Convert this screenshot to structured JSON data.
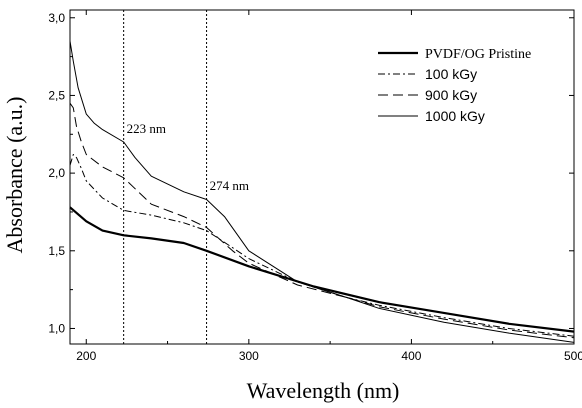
{
  "chart_data": {
    "type": "line",
    "xlabel": "Wavelength (nm)",
    "ylabel": "Absorbance (a.u.)",
    "xlim": [
      190,
      500
    ],
    "ylim": [
      0.9,
      3.05
    ],
    "x_ticks": [
      200,
      300,
      400,
      500
    ],
    "y_ticks": [
      1.0,
      1.5,
      2.0,
      2.5,
      3.0
    ],
    "x_tick_labels": [
      "200",
      "300",
      "400",
      "500"
    ],
    "y_tick_labels": [
      "1,0",
      "1,5",
      "2,0",
      "2,5",
      "3,0"
    ],
    "grid": false,
    "legend_position": "top-right",
    "reference_lines": [
      {
        "x": 223,
        "label": "223 nm"
      },
      {
        "x": 274,
        "label": "274 nm"
      }
    ],
    "series": [
      {
        "name": "PVDF/OG Pristine",
        "style": "solid-thick",
        "x": [
          190,
          200,
          210,
          223,
          240,
          260,
          274,
          300,
          340,
          380,
          420,
          460,
          500
        ],
        "y": [
          1.78,
          1.69,
          1.63,
          1.6,
          1.58,
          1.55,
          1.5,
          1.4,
          1.27,
          1.17,
          1.1,
          1.03,
          0.98
        ]
      },
      {
        "name": "100 kGy",
        "style": "dash-dot",
        "x": [
          190,
          192,
          194,
          197,
          200,
          210,
          223,
          240,
          260,
          274,
          290,
          300,
          330,
          360,
          380,
          420,
          460,
          500
        ],
        "y": [
          2.05,
          2.12,
          2.1,
          2.03,
          1.95,
          1.84,
          1.76,
          1.73,
          1.68,
          1.63,
          1.52,
          1.45,
          1.3,
          1.2,
          1.15,
          1.07,
          1.0,
          0.95
        ]
      },
      {
        "name": "900 kGy",
        "style": "long-dash",
        "x": [
          190,
          192,
          194,
          197,
          200,
          210,
          223,
          240,
          260,
          274,
          290,
          300,
          330,
          360,
          380,
          420,
          460,
          500
        ],
        "y": [
          2.45,
          2.42,
          2.3,
          2.2,
          2.12,
          2.04,
          1.97,
          1.8,
          1.72,
          1.65,
          1.5,
          1.42,
          1.28,
          1.2,
          1.14,
          1.06,
          0.99,
          0.94
        ]
      },
      {
        "name": "1000 kGy",
        "style": "solid-thin",
        "x": [
          190,
          192,
          195,
          200,
          205,
          210,
          223,
          230,
          240,
          260,
          274,
          285,
          300,
          330,
          360,
          380,
          420,
          460,
          500
        ],
        "y": [
          2.85,
          2.72,
          2.55,
          2.38,
          2.32,
          2.28,
          2.2,
          2.1,
          1.98,
          1.88,
          1.83,
          1.72,
          1.5,
          1.3,
          1.2,
          1.13,
          1.04,
          0.97,
          0.91
        ]
      }
    ]
  }
}
